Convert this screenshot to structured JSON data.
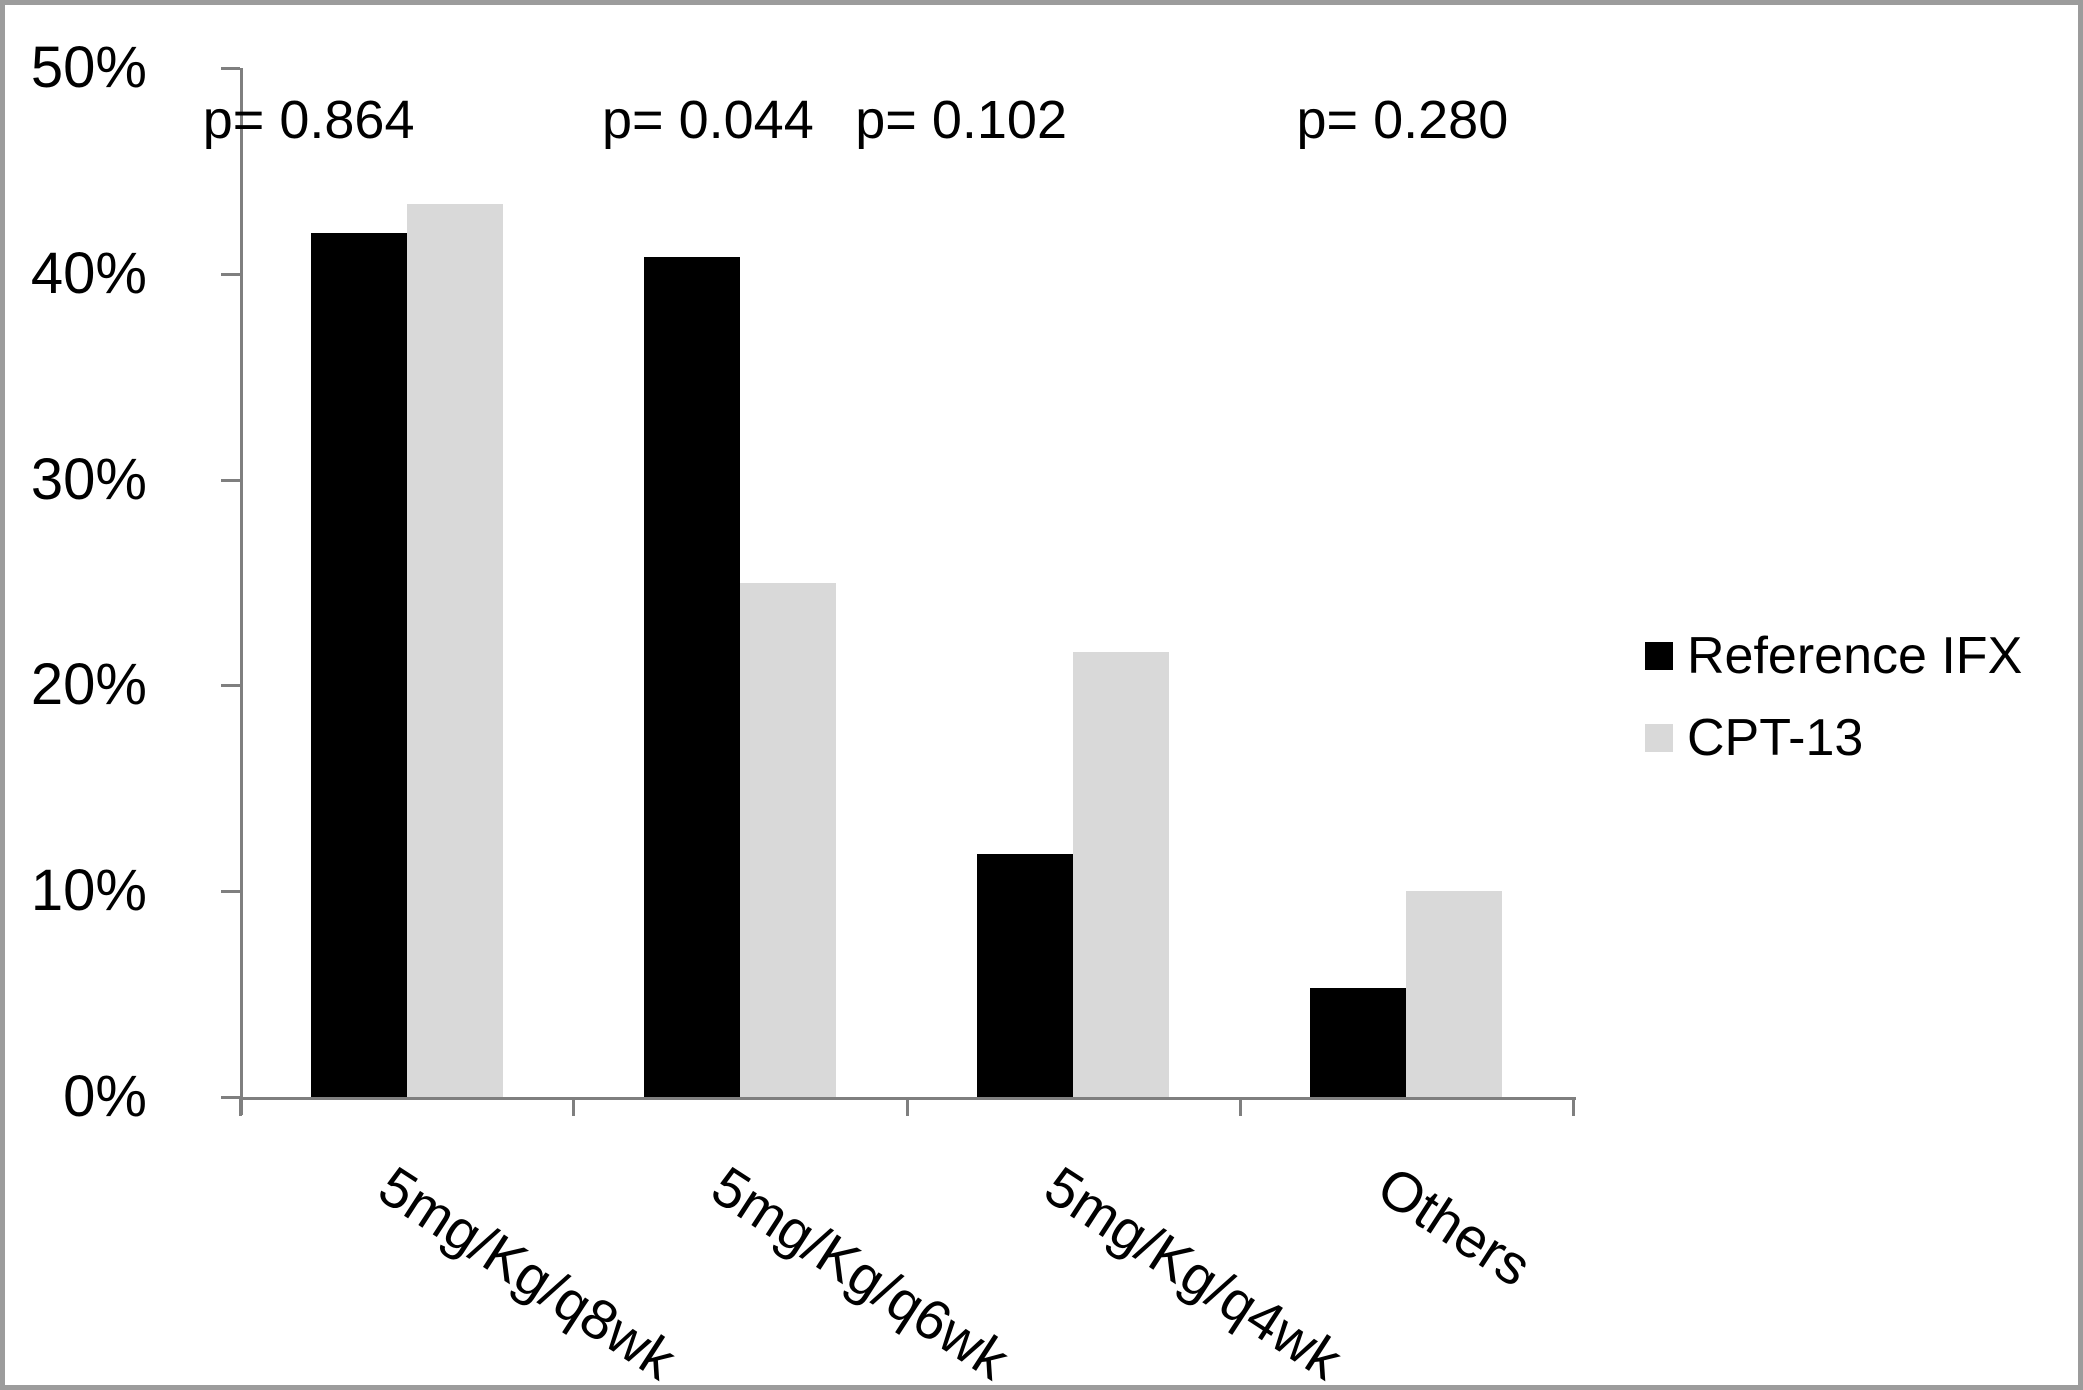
{
  "chart_data": {
    "type": "bar",
    "title": "",
    "xlabel": "",
    "ylabel": "",
    "categories": [
      "5mg/Kg/q8wk",
      "5mg/Kg/q6wk",
      "5mg/Kg/q4wk",
      "Others"
    ],
    "series": [
      {
        "name": "Reference IFX",
        "color": "#000000",
        "values": [
          42.0,
          40.8,
          11.8,
          5.3
        ]
      },
      {
        "name": "CPT-13",
        "color": "#d9d9d9",
        "values": [
          43.4,
          25.0,
          21.6,
          10.0
        ]
      }
    ],
    "annotations": [
      "p= 0.864",
      "p= 0.044",
      "p= 0.102",
      "p= 0.280"
    ],
    "y_axis": {
      "unit": "%",
      "min": 0,
      "max": 50,
      "step": 10,
      "tick_labels": [
        "0%",
        "10%",
        "20%",
        "30%",
        "40%",
        "50%"
      ]
    },
    "ylim": [
      0,
      50
    ],
    "grid": false,
    "legend_position": "right"
  },
  "colors": {
    "axis": "#7f7f7f",
    "frame_border": "#9c9c9c",
    "background": "#ffffff",
    "text": "#000000"
  }
}
